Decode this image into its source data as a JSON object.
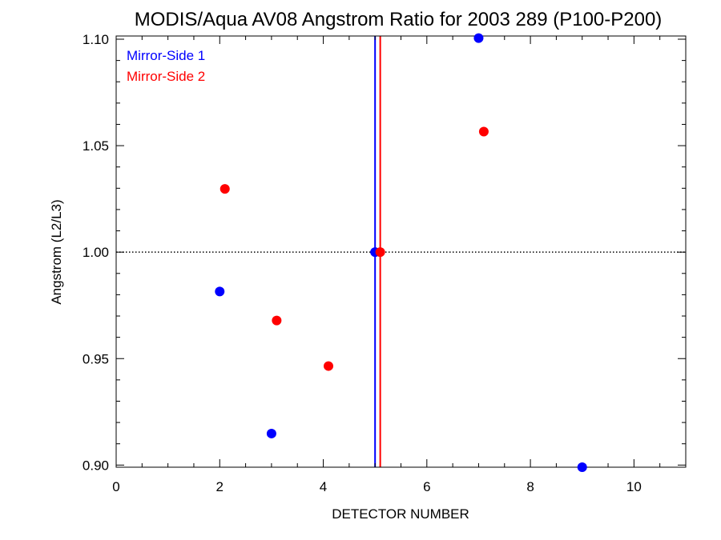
{
  "chart_data": {
    "type": "scatter",
    "title": "MODIS/Aqua AV08 Angstrom Ratio for 2003 289 (P100-P200)",
    "xlabel": "DETECTOR NUMBER",
    "ylabel": "Angstrom (L2/L3)",
    "xlim": [
      0,
      11
    ],
    "ylim": [
      0.899,
      1.1015
    ],
    "x_ticks": [
      0,
      2,
      4,
      6,
      8,
      10
    ],
    "x_tick_labels": [
      "0",
      "2",
      "4",
      "6",
      "8",
      "10"
    ],
    "y_ticks": [
      0.9,
      0.95,
      1.0,
      1.05,
      1.1
    ],
    "y_tick_labels": [
      "0.90",
      "0.95",
      "1.00",
      "1.05",
      "1.10"
    ],
    "reference_line_y": 1.0,
    "legend_position": "top-left",
    "series": [
      {
        "name": "Mirror-Side 1",
        "color": "#0000ff",
        "x": [
          2,
          3,
          5,
          7,
          9
        ],
        "y": [
          0.9815,
          0.9148,
          1.0,
          1.1005,
          0.899
        ],
        "vertical_line_x": 5.0
      },
      {
        "name": "Mirror-Side 2",
        "color": "#ff0000",
        "x": [
          2.1,
          3.1,
          4.1,
          5.1,
          7.1
        ],
        "y": [
          1.0297,
          0.9679,
          0.9465,
          1.0,
          1.0566
        ],
        "vertical_line_x": 5.1
      }
    ]
  }
}
